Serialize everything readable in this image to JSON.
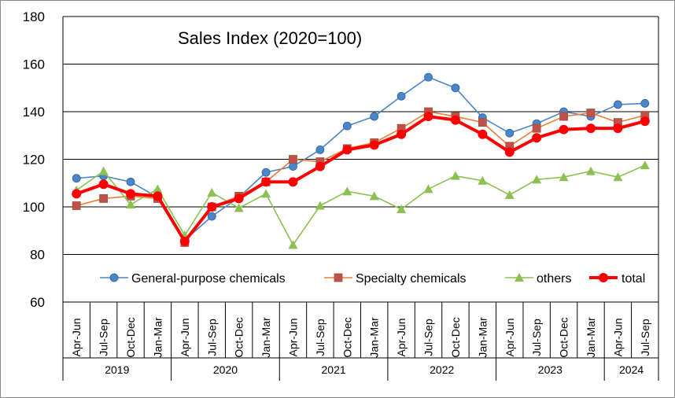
{
  "chart_data": {
    "type": "line",
    "title": "Sales Index (2020=100)",
    "ylim": [
      60,
      180
    ],
    "yticks": [
      60,
      80,
      100,
      120,
      140,
      160,
      180
    ],
    "grid": "horizontal",
    "legend_position": "bottom-inside",
    "categories": [
      "Apr-Jun",
      "Jul-Sep",
      "Oct-Dec",
      "Jan-Mar",
      "Apr-Jun",
      "Jul-Sep",
      "Oct-Dec",
      "Jan-Mar",
      "Apr-Jun",
      "Jul-Sep",
      "Oct-Dec",
      "Jan-Mar",
      "Apr-Jun",
      "Jul-Sep",
      "Oct-Dec",
      "Jan-Mar",
      "Apr-Jun",
      "Jul-Sep",
      "Oct-Dec",
      "Jan-Mar",
      "Apr-Jun",
      "Jul-Sep"
    ],
    "year_groups": [
      {
        "label": "2019",
        "count": 4
      },
      {
        "label": "2020",
        "count": 4
      },
      {
        "label": "2021",
        "count": 4
      },
      {
        "label": "2022",
        "count": 4
      },
      {
        "label": "2023",
        "count": 4
      },
      {
        "label": "2024",
        "count": 2
      }
    ],
    "series": [
      {
        "name": "General-purpose chemicals",
        "color": "#4a86c8",
        "marker": "circle",
        "values": [
          112,
          113,
          110.5,
          104,
          86,
          96,
          104,
          114.5,
          117,
          124,
          134,
          138,
          146.5,
          154.5,
          150,
          137.5,
          131,
          135,
          140,
          138,
          143,
          143.5
        ]
      },
      {
        "name": "Specialty chemicals",
        "color": "#ed7d31",
        "marker_color": "#c0504d",
        "marker": "square",
        "values": [
          100.5,
          103.5,
          104.5,
          103.5,
          85,
          100,
          104.5,
          110.5,
          120,
          119,
          124.5,
          127,
          133,
          140,
          138,
          135.5,
          125.5,
          133,
          138,
          139.5,
          135.5,
          138.5
        ]
      },
      {
        "name": "others",
        "color": "#8cc152",
        "marker": "triangle",
        "values": [
          107,
          115,
          101,
          107.5,
          88,
          106,
          99.5,
          105.5,
          84,
          100.5,
          106.5,
          104.5,
          99,
          107.5,
          113,
          111,
          105,
          111.5,
          112.5,
          115,
          112.5,
          117.5
        ]
      },
      {
        "name": "total",
        "color": "#ff0000",
        "marker": "circle",
        "bold": true,
        "values": [
          105.5,
          109.5,
          105.5,
          104.5,
          85.5,
          100,
          103.5,
          110.5,
          110.5,
          117,
          124,
          126,
          130.5,
          138,
          136.5,
          130.5,
          123,
          129,
          132.5,
          133,
          133,
          136
        ]
      }
    ]
  }
}
